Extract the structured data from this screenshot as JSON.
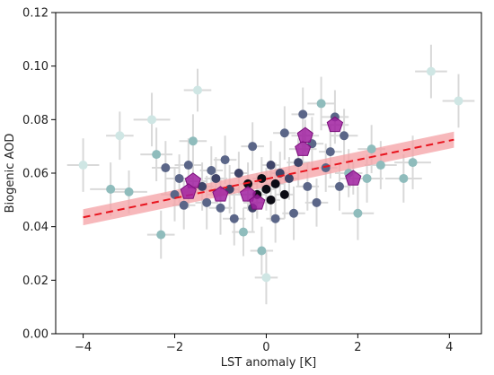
{
  "chart_data": {
    "type": "scatter",
    "title": "",
    "xlabel": "LST anomaly [K]",
    "ylabel": "Biogenic AOD",
    "xlim": [
      -4.6,
      4.7
    ],
    "ylim": [
      0.0,
      0.12
    ],
    "xticks": [
      -4,
      -2,
      0,
      2,
      4
    ],
    "xtick_labels": [
      "−4",
      "−2",
      "0",
      "2",
      "4"
    ],
    "yticks": [
      0.0,
      0.02,
      0.04,
      0.06,
      0.08,
      0.1,
      0.12
    ],
    "ytick_labels": [
      "0.00",
      "0.02",
      "0.04",
      "0.06",
      "0.08",
      "0.10",
      "0.12"
    ],
    "grid": false,
    "colors": {
      "errorbar": "#d9d9d9",
      "dense_point": "#0b0b14",
      "mid_point": "#3f4468",
      "sparse_point": "#8fbcbc",
      "faint_point": "#cfe6e4",
      "pentagon": "#a020a0",
      "regression_line": "#e8141e",
      "confidence_band": "#f4a0a4"
    },
    "points": [
      {
        "x": -4.0,
        "y": 0.063,
        "xerr": 0.35,
        "yerr": 0.01,
        "shade": 4
      },
      {
        "x": -3.4,
        "y": 0.054,
        "xerr": 0.45,
        "yerr": 0.01,
        "shade": 3
      },
      {
        "x": -3.2,
        "y": 0.074,
        "xerr": 0.3,
        "yerr": 0.009,
        "shade": 4
      },
      {
        "x": -3.0,
        "y": 0.053,
        "xerr": 0.4,
        "yerr": 0.008,
        "shade": 3
      },
      {
        "x": -2.5,
        "y": 0.08,
        "xerr": 0.4,
        "yerr": 0.01,
        "shade": 4
      },
      {
        "x": -2.4,
        "y": 0.067,
        "xerr": 0.35,
        "yerr": 0.01,
        "shade": 3
      },
      {
        "x": -2.3,
        "y": 0.037,
        "xerr": 0.3,
        "yerr": 0.009,
        "shade": 3
      },
      {
        "x": -2.2,
        "y": 0.062,
        "xerr": 0.3,
        "yerr": 0.01,
        "shade": 2
      },
      {
        "x": -2.0,
        "y": 0.052,
        "xerr": 0.3,
        "yerr": 0.01,
        "shade": 2
      },
      {
        "x": -1.9,
        "y": 0.058,
        "xerr": 0.3,
        "yerr": 0.009,
        "shade": 2
      },
      {
        "x": -1.8,
        "y": 0.048,
        "xerr": 0.25,
        "yerr": 0.009,
        "shade": 2
      },
      {
        "x": -1.7,
        "y": 0.063,
        "xerr": 0.3,
        "yerr": 0.01,
        "shade": 2
      },
      {
        "x": -1.6,
        "y": 0.072,
        "xerr": 0.3,
        "yerr": 0.01,
        "shade": 3
      },
      {
        "x": -1.5,
        "y": 0.091,
        "xerr": 0.3,
        "yerr": 0.008,
        "shade": 4
      },
      {
        "x": -1.4,
        "y": 0.055,
        "xerr": 0.25,
        "yerr": 0.009,
        "shade": 1
      },
      {
        "x": -1.3,
        "y": 0.049,
        "xerr": 0.25,
        "yerr": 0.01,
        "shade": 2
      },
      {
        "x": -1.2,
        "y": 0.061,
        "xerr": 0.25,
        "yerr": 0.009,
        "shade": 2
      },
      {
        "x": -1.1,
        "y": 0.058,
        "xerr": 0.25,
        "yerr": 0.008,
        "shade": 1
      },
      {
        "x": -1.0,
        "y": 0.047,
        "xerr": 0.25,
        "yerr": 0.01,
        "shade": 2
      },
      {
        "x": -0.9,
        "y": 0.065,
        "xerr": 0.25,
        "yerr": 0.009,
        "shade": 2
      },
      {
        "x": -0.8,
        "y": 0.054,
        "xerr": 0.2,
        "yerr": 0.009,
        "shade": 1
      },
      {
        "x": -0.7,
        "y": 0.043,
        "xerr": 0.25,
        "yerr": 0.01,
        "shade": 2
      },
      {
        "x": -0.6,
        "y": 0.06,
        "xerr": 0.2,
        "yerr": 0.008,
        "shade": 1
      },
      {
        "x": -0.5,
        "y": 0.038,
        "xerr": 0.25,
        "yerr": 0.009,
        "shade": 3
      },
      {
        "x": -0.4,
        "y": 0.056,
        "xerr": 0.2,
        "yerr": 0.008,
        "shade": 0
      },
      {
        "x": -0.3,
        "y": 0.047,
        "xerr": 0.2,
        "yerr": 0.009,
        "shade": 1
      },
      {
        "x": -0.3,
        "y": 0.07,
        "xerr": 0.25,
        "yerr": 0.009,
        "shade": 2
      },
      {
        "x": -0.2,
        "y": 0.052,
        "xerr": 0.2,
        "yerr": 0.008,
        "shade": 0
      },
      {
        "x": -0.1,
        "y": 0.058,
        "xerr": 0.2,
        "yerr": 0.008,
        "shade": 0
      },
      {
        "x": -0.1,
        "y": 0.031,
        "xerr": 0.25,
        "yerr": 0.009,
        "shade": 3
      },
      {
        "x": 0.0,
        "y": 0.054,
        "xerr": 0.2,
        "yerr": 0.008,
        "shade": 0
      },
      {
        "x": 0.0,
        "y": 0.021,
        "xerr": 0.25,
        "yerr": 0.01,
        "shade": 4
      },
      {
        "x": 0.1,
        "y": 0.05,
        "xerr": 0.2,
        "yerr": 0.008,
        "shade": 0
      },
      {
        "x": 0.1,
        "y": 0.063,
        "xerr": 0.2,
        "yerr": 0.009,
        "shade": 1
      },
      {
        "x": 0.2,
        "y": 0.056,
        "xerr": 0.2,
        "yerr": 0.008,
        "shade": 0
      },
      {
        "x": 0.2,
        "y": 0.043,
        "xerr": 0.2,
        "yerr": 0.009,
        "shade": 2
      },
      {
        "x": 0.3,
        "y": 0.06,
        "xerr": 0.2,
        "yerr": 0.008,
        "shade": 1
      },
      {
        "x": 0.4,
        "y": 0.052,
        "xerr": 0.2,
        "yerr": 0.009,
        "shade": 0
      },
      {
        "x": 0.4,
        "y": 0.075,
        "xerr": 0.25,
        "yerr": 0.01,
        "shade": 2
      },
      {
        "x": 0.5,
        "y": 0.058,
        "xerr": 0.2,
        "yerr": 0.008,
        "shade": 1
      },
      {
        "x": 0.6,
        "y": 0.045,
        "xerr": 0.25,
        "yerr": 0.01,
        "shade": 2
      },
      {
        "x": 0.7,
        "y": 0.064,
        "xerr": 0.25,
        "yerr": 0.009,
        "shade": 1
      },
      {
        "x": 0.8,
        "y": 0.082,
        "xerr": 0.25,
        "yerr": 0.01,
        "shade": 2
      },
      {
        "x": 0.9,
        "y": 0.055,
        "xerr": 0.25,
        "yerr": 0.009,
        "shade": 2
      },
      {
        "x": 1.0,
        "y": 0.071,
        "xerr": 0.25,
        "yerr": 0.01,
        "shade": 2
      },
      {
        "x": 1.1,
        "y": 0.049,
        "xerr": 0.25,
        "yerr": 0.009,
        "shade": 2
      },
      {
        "x": 1.2,
        "y": 0.086,
        "xerr": 0.3,
        "yerr": 0.01,
        "shade": 3
      },
      {
        "x": 1.3,
        "y": 0.062,
        "xerr": 0.25,
        "yerr": 0.009,
        "shade": 2
      },
      {
        "x": 1.4,
        "y": 0.068,
        "xerr": 0.25,
        "yerr": 0.01,
        "shade": 2
      },
      {
        "x": 1.5,
        "y": 0.081,
        "xerr": 0.3,
        "yerr": 0.01,
        "shade": 2
      },
      {
        "x": 1.6,
        "y": 0.055,
        "xerr": 0.25,
        "yerr": 0.009,
        "shade": 2
      },
      {
        "x": 1.7,
        "y": 0.074,
        "xerr": 0.3,
        "yerr": 0.01,
        "shade": 2
      },
      {
        "x": 1.8,
        "y": 0.06,
        "xerr": 0.3,
        "yerr": 0.009,
        "shade": 3
      },
      {
        "x": 2.0,
        "y": 0.045,
        "xerr": 0.35,
        "yerr": 0.01,
        "shade": 3
      },
      {
        "x": 2.2,
        "y": 0.058,
        "xerr": 0.35,
        "yerr": 0.009,
        "shade": 3
      },
      {
        "x": 2.3,
        "y": 0.069,
        "xerr": 0.3,
        "yerr": 0.009,
        "shade": 3
      },
      {
        "x": 2.5,
        "y": 0.063,
        "xerr": 0.35,
        "yerr": 0.009,
        "shade": 3
      },
      {
        "x": 3.0,
        "y": 0.058,
        "xerr": 0.4,
        "yerr": 0.009,
        "shade": 3
      },
      {
        "x": 3.2,
        "y": 0.064,
        "xerr": 0.4,
        "yerr": 0.01,
        "shade": 3
      },
      {
        "x": 3.6,
        "y": 0.098,
        "xerr": 0.35,
        "yerr": 0.01,
        "shade": 4
      },
      {
        "x": 4.2,
        "y": 0.087,
        "xerr": 0.35,
        "yerr": 0.01,
        "shade": 4
      }
    ],
    "highlight_points": [
      {
        "x": -1.6,
        "y": 0.057,
        "xerr": 0.3,
        "yerr": 0.006
      },
      {
        "x": -1.7,
        "y": 0.053,
        "xerr": 0.3,
        "yerr": 0.006
      },
      {
        "x": -1.0,
        "y": 0.052,
        "xerr": 0.3,
        "yerr": 0.006
      },
      {
        "x": -0.4,
        "y": 0.052,
        "xerr": 0.3,
        "yerr": 0.006
      },
      {
        "x": -0.2,
        "y": 0.049,
        "xerr": 0.3,
        "yerr": 0.006
      },
      {
        "x": 0.8,
        "y": 0.069,
        "xerr": 0.3,
        "yerr": 0.006
      },
      {
        "x": 0.85,
        "y": 0.074,
        "xerr": 0.3,
        "yerr": 0.006
      },
      {
        "x": 1.5,
        "y": 0.078,
        "xerr": 0.3,
        "yerr": 0.006
      },
      {
        "x": 1.9,
        "y": 0.058,
        "xerr": 0.3,
        "yerr": 0.006
      }
    ],
    "fit": {
      "x": [
        -4.0,
        4.1
      ],
      "y": [
        0.0435,
        0.0725
      ],
      "band_lower": [
        0.0405,
        0.0695
      ],
      "band_upper": [
        0.0465,
        0.0755
      ]
    }
  }
}
